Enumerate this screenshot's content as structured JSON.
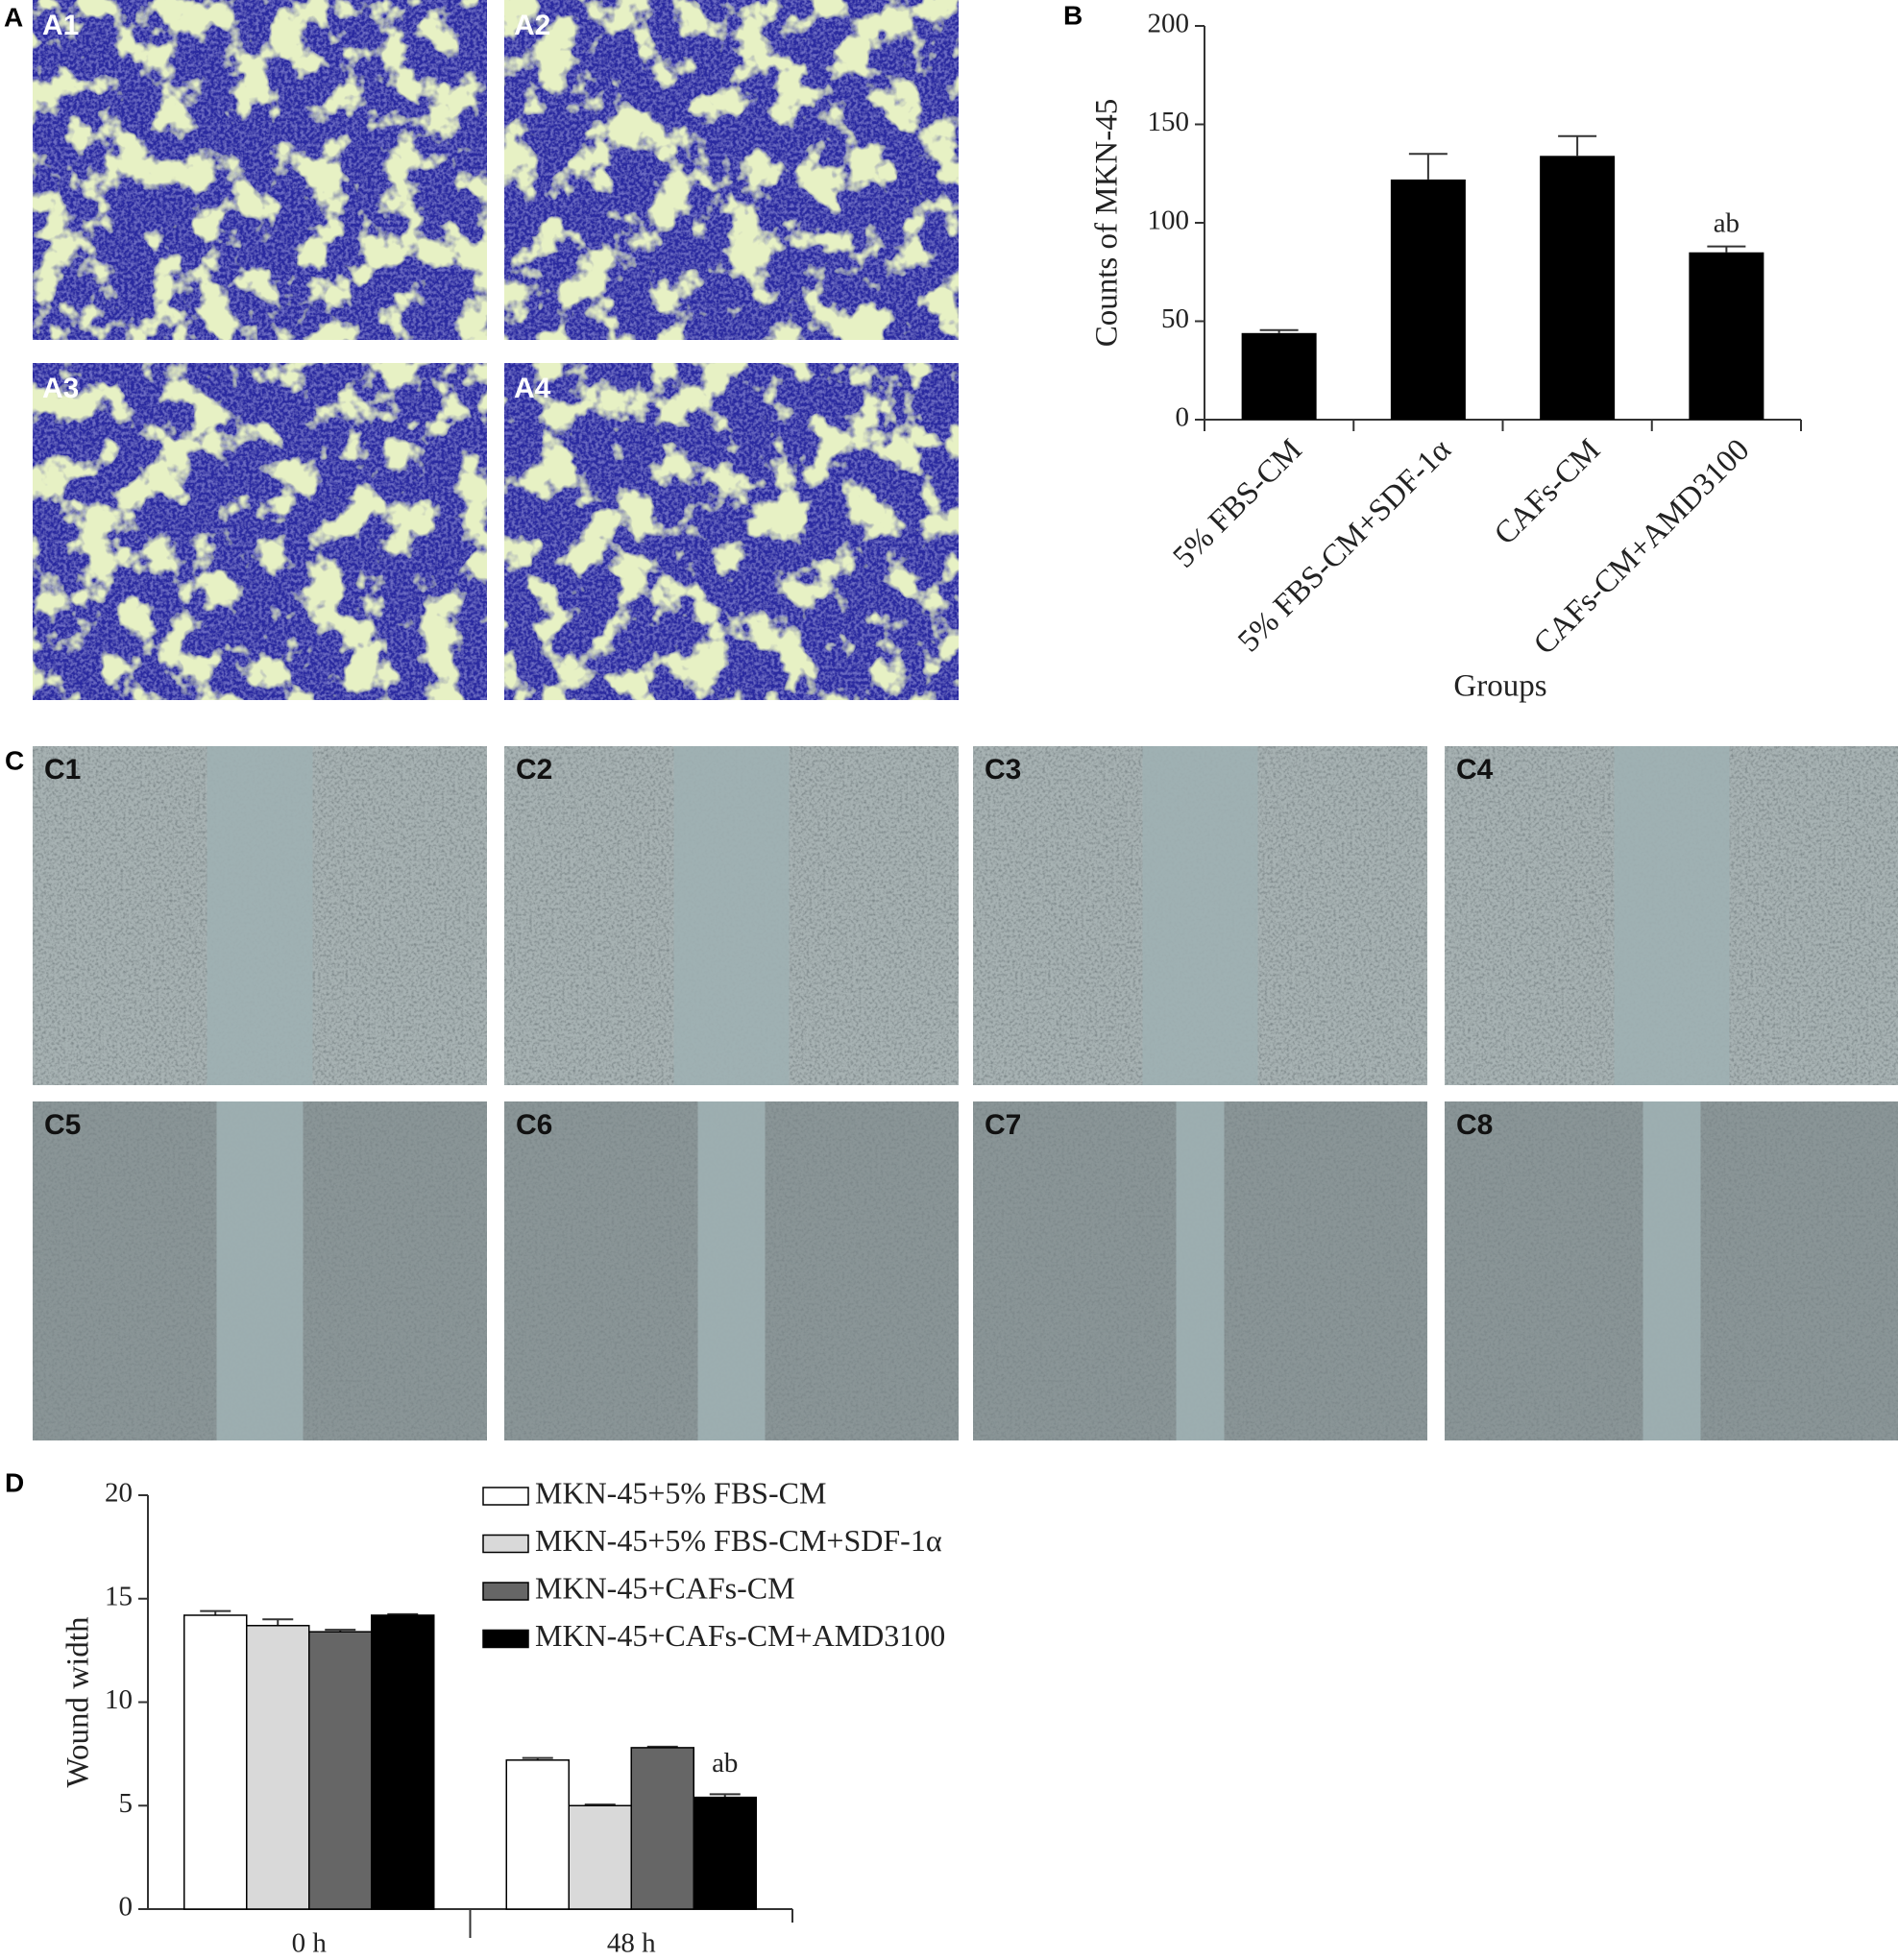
{
  "panel_labels": [
    "A",
    "B",
    "C",
    "D"
  ],
  "image_labels": {
    "A": [
      "A1",
      "A2",
      "A3",
      "A4"
    ],
    "C": [
      "C1",
      "C2",
      "C3",
      "C4",
      "C5",
      "C6",
      "C7",
      "C8"
    ]
  },
  "chart_data": [
    {
      "type": "bar",
      "x_label": "Groups",
      "y_label": "Counts of MKN-45",
      "categories": [
        "5% FBS-CM",
        "5% FBS-CM+SDF-1α",
        "CAFs-CM",
        "CAFs-CM+AMD3100"
      ],
      "values": [
        44,
        122,
        134,
        85
      ],
      "errors": [
        1.5,
        13,
        10,
        3
      ],
      "annotations": [
        null,
        null,
        null,
        "ab"
      ],
      "color": "#000000",
      "ylim": [
        0,
        200
      ],
      "yticks": [
        0,
        50,
        100,
        150,
        200
      ]
    },
    {
      "type": "grouped-bar",
      "y_label": "Wound width",
      "categories": [
        "0 h",
        "48 h"
      ],
      "series": [
        {
          "name": "MKN-45+5% FBS-CM",
          "color": "#ffffff",
          "values": [
            14.2,
            7.2
          ],
          "errors": [
            0.2,
            0.1
          ],
          "annotations": [
            null,
            null
          ]
        },
        {
          "name": "MKN-45+5% FBS-CM+SDF-1α",
          "color": "#d9d9d9",
          "values": [
            13.7,
            5.0
          ],
          "errors": [
            0.3,
            0.05
          ],
          "annotations": [
            null,
            null
          ]
        },
        {
          "name": "MKN-45+CAFs-CM",
          "color": "#666666",
          "values": [
            13.4,
            7.8
          ],
          "errors": [
            0.1,
            0.05
          ],
          "annotations": [
            null,
            null
          ]
        },
        {
          "name": "MKN-45+CAFs-CM+AMD3100",
          "color": "#000000",
          "values": [
            14.2,
            5.4
          ],
          "errors": [
            0.05,
            0.15
          ],
          "annotations": [
            null,
            "ab"
          ]
        }
      ],
      "ylim": [
        0,
        20
      ],
      "yticks": [
        0,
        5,
        10,
        15,
        20
      ]
    }
  ]
}
